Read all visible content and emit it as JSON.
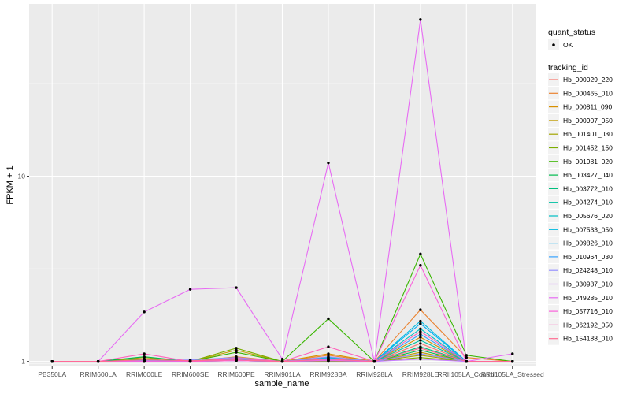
{
  "chart_data": {
    "type": "line",
    "title": "",
    "xlabel": "sample_name",
    "ylabel": "FPKM + 1",
    "y_scale": "log10",
    "ylim": [
      0.94,
      85
    ],
    "y_ticks": [
      {
        "value": 1,
        "label": "1"
      },
      {
        "value": 10,
        "label": "10"
      }
    ],
    "categories": [
      "PB350LA",
      "RRIM600LA",
      "RRIM600LE",
      "RRIM600SE",
      "RRIM600PE",
      "RRIM901LA",
      "RRIM928BA",
      "RRIM928LA",
      "RRIM928LE",
      "RRII105LA_Control",
      "RRII105LA_Stressed"
    ],
    "grid": true,
    "panel_background": "#ebebeb",
    "grid_color": "#ffffff",
    "point_color": "#000000",
    "legends": {
      "quant_status": {
        "title": "quant_status",
        "entries": [
          "OK"
        ]
      },
      "tracking_id": {
        "title": "tracking_id",
        "placement": "right"
      }
    },
    "series": [
      {
        "name": "Hb_000029_220",
        "color": "#F8766D",
        "values": [
          1,
          1,
          1.0,
          1.0,
          1.01,
          1.0,
          1.04,
          1,
          1.25,
          1.0,
          1
        ]
      },
      {
        "name": "Hb_000465_010",
        "color": "#EA8331",
        "values": [
          1,
          1,
          1.02,
          1.0,
          1.06,
          1.0,
          1.08,
          1,
          1.9,
          1.05,
          1
        ]
      },
      {
        "name": "Hb_000811_090",
        "color": "#D89000",
        "values": [
          1,
          1,
          1.01,
          1.0,
          1.02,
          1.0,
          1.1,
          1,
          1.35,
          1.0,
          1
        ]
      },
      {
        "name": "Hb_000907_050",
        "color": "#C09B00",
        "values": [
          1,
          1,
          1.05,
          1.0,
          1.15,
          1.0,
          1.05,
          1,
          1.12,
          1.0,
          1
        ]
      },
      {
        "name": "Hb_001401_030",
        "color": "#A3A500",
        "values": [
          1,
          1,
          1.01,
          1.0,
          1.02,
          1.0,
          1.02,
          1,
          1.08,
          1.0,
          1
        ]
      },
      {
        "name": "Hb_001452_150",
        "color": "#7CAE00",
        "values": [
          1,
          1,
          1.03,
          1.0,
          1.18,
          1.0,
          1.0,
          1,
          1.05,
          1.0,
          1
        ]
      },
      {
        "name": "Hb_001981_020",
        "color": "#39B600",
        "values": [
          1,
          1,
          1.01,
          1.0,
          1.12,
          1.0,
          1.7,
          1,
          3.8,
          1.08,
          1
        ]
      },
      {
        "name": "Hb_003427_040",
        "color": "#00BB4E",
        "values": [
          1,
          1,
          1.06,
          1.0,
          1.04,
          1.0,
          1.02,
          1,
          1.15,
          1.0,
          1
        ]
      },
      {
        "name": "Hb_003772_010",
        "color": "#00BF7D",
        "values": [
          1,
          1,
          1.0,
          1.0,
          1.01,
          1.0,
          1.01,
          1,
          1.2,
          1.0,
          1
        ]
      },
      {
        "name": "Hb_004274_010",
        "color": "#00C1A3",
        "values": [
          1,
          1,
          1.01,
          1.01,
          1.02,
          1.0,
          1.03,
          1,
          1.3,
          1.0,
          1
        ]
      },
      {
        "name": "Hb_005676_020",
        "color": "#00BFC4",
        "values": [
          1,
          1,
          1.02,
          1.0,
          1.03,
          1.0,
          1.05,
          1,
          1.5,
          1.0,
          1
        ]
      },
      {
        "name": "Hb_007533_050",
        "color": "#00BAE0",
        "values": [
          1,
          1,
          1.0,
          1.01,
          1.01,
          1.0,
          1.02,
          1,
          1.65,
          1.0,
          1
        ]
      },
      {
        "name": "Hb_009826_010",
        "color": "#00B0F6",
        "values": [
          1,
          1,
          1.01,
          1.0,
          1.02,
          1.0,
          1.01,
          1,
          1.6,
          1.0,
          1
        ]
      },
      {
        "name": "Hb_010964_030",
        "color": "#35A2FF",
        "values": [
          1,
          1,
          1.0,
          1.0,
          1.03,
          1.0,
          1.04,
          1,
          1.4,
          1.0,
          1
        ]
      },
      {
        "name": "Hb_024248_010",
        "color": "#9590FF",
        "values": [
          1,
          1,
          1.01,
          1.02,
          1.05,
          1.0,
          1.06,
          1,
          1.1,
          1.0,
          1
        ]
      },
      {
        "name": "Hb_030987_010",
        "color": "#C77CFF",
        "values": [
          1,
          1,
          1.0,
          1.0,
          1.02,
          1.0,
          1.02,
          1,
          1.03,
          1.0,
          1
        ]
      },
      {
        "name": "Hb_049285_010",
        "color": "#E76BF3",
        "values": [
          1,
          1,
          1.85,
          2.45,
          2.5,
          1.03,
          11.8,
          1,
          70,
          1.0,
          1.1
        ]
      },
      {
        "name": "Hb_057716_010",
        "color": "#FA62DB",
        "values": [
          1,
          1,
          1.0,
          1.0,
          1.01,
          1.0,
          1.01,
          1,
          3.3,
          1.0,
          1
        ]
      },
      {
        "name": "Hb_062192_050",
        "color": "#FF62BC",
        "values": [
          1,
          1,
          1.1,
          1.0,
          1.04,
          1.0,
          1.2,
          1,
          1.45,
          1.0,
          1
        ]
      },
      {
        "name": "Hb_154188_010",
        "color": "#FF6C91",
        "values": [
          1,
          1,
          1.02,
          1.01,
          1.02,
          1.0,
          1.03,
          1,
          1.18,
          1.0,
          1
        ]
      }
    ]
  }
}
